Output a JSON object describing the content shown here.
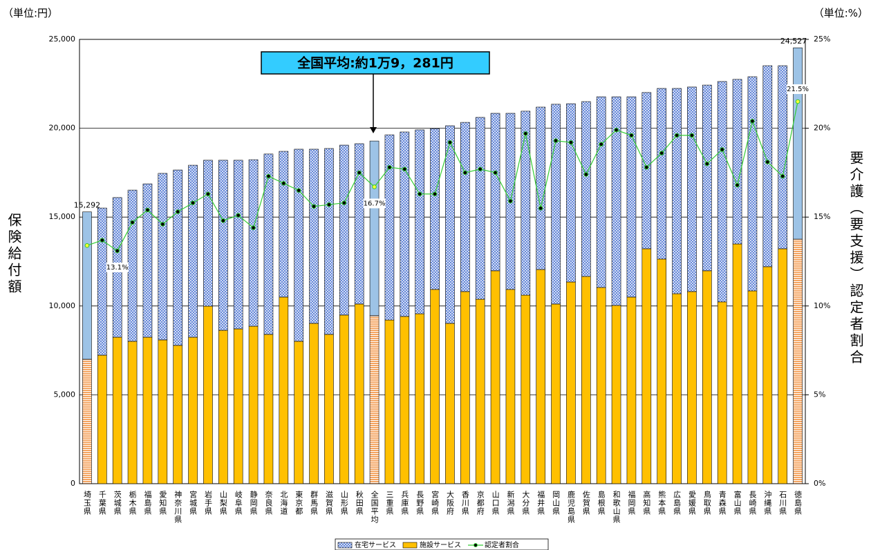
{
  "chart_data": {
    "type": "bar",
    "unit_left": "（単位:円）",
    "unit_right": "（単位:%）",
    "ylabel": "保険給付額",
    "y2label": "要介護（要支援）認定者割合",
    "annotation": "全国平均:約1万9，281円",
    "categories": [
      "埼玉県",
      "千葉県",
      "茨城県",
      "栃木県",
      "福島県",
      "愛知県",
      "神奈川県",
      "宮城県",
      "岩手県",
      "山梨県",
      "岐阜県",
      "静岡県",
      "奈良県",
      "北海道",
      "東京都",
      "群馬県",
      "滋賀県",
      "山形県",
      "秋田県",
      "全国平均",
      "三重県",
      "兵庫県",
      "長野県",
      "宮崎県",
      "大阪府",
      "香川県",
      "京都府",
      "山口県",
      "新潟県",
      "大分県",
      "福井県",
      "岡山県",
      "鹿児島県",
      "佐賀県",
      "島根県",
      "和歌山県",
      "福岡県",
      "高知県",
      "熊本県",
      "広島県",
      "愛媛県",
      "鳥取県",
      "青森県",
      "富山県",
      "長崎県",
      "沖縄県",
      "石川県",
      "徳島県"
    ],
    "highlight": [
      "埼玉県",
      "全国平均",
      "徳島県"
    ],
    "series": [
      {
        "name": "在宅サービス",
        "type": "bar",
        "color": "#5a7fd6",
        "highlight_color": "#9dc3e6",
        "values": [
          8292,
          8280,
          7860,
          8510,
          8630,
          9370,
          9870,
          9680,
          8210,
          9570,
          9490,
          9370,
          10150,
          8200,
          10810,
          9800,
          10460,
          9560,
          9020,
          9831,
          10420,
          10380,
          10350,
          9050,
          11120,
          9520,
          10230,
          8860,
          9910,
          10350,
          9140,
          11240,
          10030,
          9840,
          10730,
          11740,
          11270,
          8790,
          9600,
          11550,
          11510,
          10450,
          12400,
          9260,
          12050,
          11310,
          10300,
          10767
        ]
      },
      {
        "name": "施設サービス",
        "type": "bar",
        "color": "#ffc000",
        "highlight_color": "#f4a460",
        "values": [
          7000,
          7230,
          8240,
          8010,
          8240,
          8090,
          7780,
          8240,
          9990,
          8630,
          8710,
          8860,
          8400,
          10500,
          8010,
          9020,
          8400,
          9490,
          10110,
          9450,
          9210,
          9410,
          9560,
          10930,
          9020,
          10810,
          10380,
          11980,
          10930,
          10610,
          12050,
          10110,
          11350,
          11660,
          11040,
          10030,
          10500,
          13220,
          12640,
          10690,
          10810,
          11980,
          10230,
          13490,
          10850,
          12210,
          13220,
          13760
        ]
      },
      {
        "name": "認定者割合",
        "type": "line",
        "axis": "y2",
        "color": "#33cc33",
        "highlight_color": "#ffff33",
        "values": [
          13.4,
          13.7,
          13.1,
          14.7,
          15.4,
          14.6,
          15.3,
          15.8,
          16.3,
          14.8,
          15.1,
          14.4,
          17.3,
          16.9,
          16.5,
          15.6,
          15.7,
          15.8,
          17.5,
          16.7,
          17.8,
          17.7,
          16.3,
          16.3,
          19.2,
          17.5,
          17.7,
          17.5,
          15.9,
          19.7,
          15.5,
          19.3,
          19.2,
          17.4,
          19.1,
          19.9,
          19.6,
          17.8,
          18.6,
          19.6,
          19.6,
          18.0,
          18.8,
          16.8,
          20.4,
          18.1,
          17.3,
          21.5
        ],
        "value_labels": [
          null,
          null,
          "13.1%",
          null,
          null,
          null,
          null,
          null,
          null,
          null,
          null,
          null,
          null,
          null,
          null,
          null,
          null,
          null,
          null,
          "16.7%",
          null,
          null,
          null,
          null,
          null,
          null,
          null,
          null,
          null,
          null,
          null,
          null,
          null,
          null,
          null,
          null,
          null,
          null,
          null,
          null,
          null,
          null,
          null,
          null,
          null,
          null,
          null,
          "21.5%"
        ]
      }
    ],
    "total_labels": [
      "15,292",
      null,
      null,
      null,
      null,
      null,
      null,
      null,
      null,
      null,
      null,
      null,
      null,
      null,
      null,
      null,
      null,
      null,
      null,
      null,
      null,
      null,
      null,
      null,
      null,
      null,
      null,
      null,
      null,
      null,
      null,
      null,
      null,
      null,
      null,
      null,
      null,
      null,
      null,
      null,
      null,
      null,
      null,
      null,
      null,
      null,
      null,
      "24,527"
    ],
    "ylim": [
      0,
      25000
    ],
    "yticks": [
      0,
      {
        "value": 5000,
        "label": "5,000"
      },
      {
        "value": 10000,
        "label": "10,000"
      },
      {
        "value": 15000,
        "label": "15,000"
      },
      {
        "value": 20000,
        "label": "20,000"
      },
      {
        "value": 25000,
        "label": "25,000"
      }
    ],
    "y2lim": [
      0,
      25
    ],
    "y2ticks": [
      {
        "value": 0,
        "label": "0%"
      },
      {
        "value": 5,
        "label": "5%"
      },
      {
        "value": 10,
        "label": "10%"
      },
      {
        "value": 15,
        "label": "15%"
      },
      {
        "value": 20,
        "label": "20%"
      },
      {
        "value": 25,
        "label": "25%"
      }
    ],
    "grid": true
  }
}
